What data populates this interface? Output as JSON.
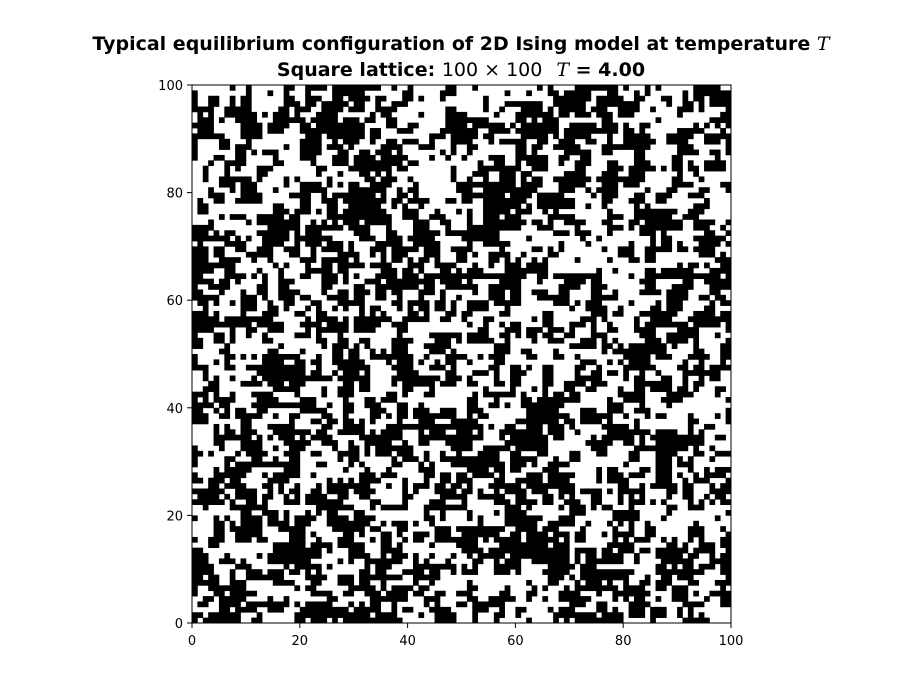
{
  "chart_data": {
    "type": "heatmap",
    "title": {
      "line1_text": "Typical equilibrium configuration of 2D Ising model at temperature ",
      "line1_symbol": "T",
      "line2_label": "Square lattice: ",
      "line2_size": "100 × 100",
      "line2_symbol": "T",
      "line2_value": " = 4.00"
    },
    "lattice_size": [
      100,
      100
    ],
    "temperature": 4.0,
    "xlim": [
      0,
      100
    ],
    "ylim": [
      0,
      100
    ],
    "x_ticks": [
      0,
      20,
      40,
      60,
      80,
      100
    ],
    "y_ticks": [
      0,
      20,
      40,
      60,
      80,
      100
    ],
    "x_tick_labels": [
      "0",
      "20",
      "40",
      "60",
      "80",
      "100"
    ],
    "y_tick_labels": [
      "0",
      "20",
      "40",
      "60",
      "80",
      "100"
    ],
    "xlabel": "",
    "ylabel": "",
    "grid": false,
    "legend": "none",
    "colors": {
      "spin_down": "#000000",
      "spin_up": "#ffffff",
      "axes": "#000000"
    }
  }
}
